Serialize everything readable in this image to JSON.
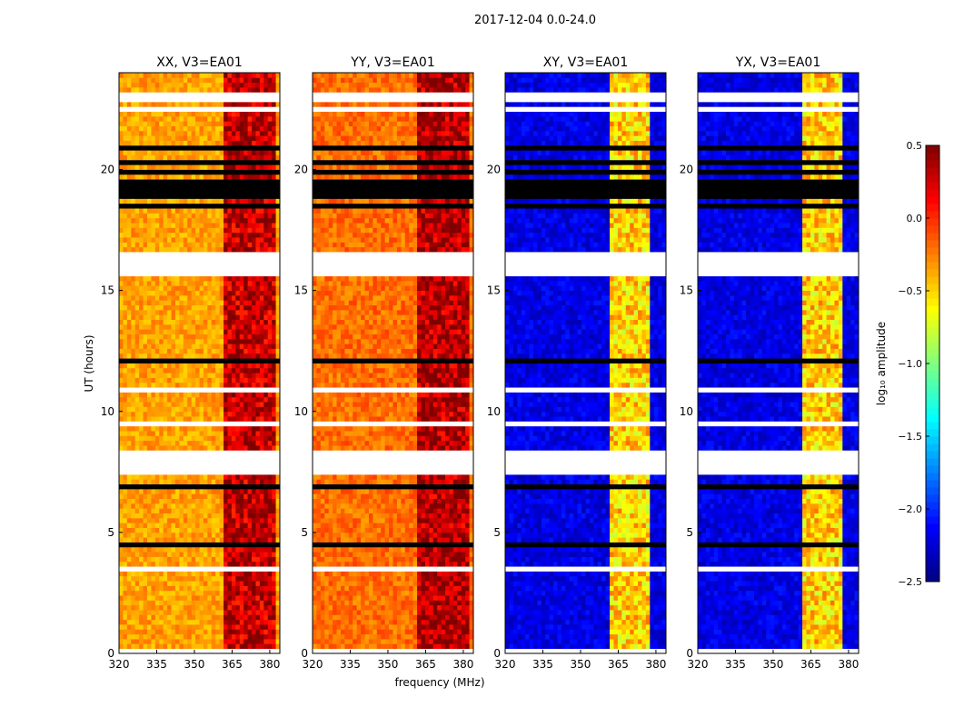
{
  "chart_data": {
    "type": "heatmap",
    "title": "2017-12-04 0.0-24.0",
    "xlabel": "frequency (MHz)",
    "ylabel": "UT (hours)",
    "xlim": [
      320,
      384
    ],
    "ylim": [
      0,
      24
    ],
    "xticks": [
      "320",
      "335",
      "350",
      "365",
      "380"
    ],
    "yticks": [
      "0",
      "5",
      "10",
      "15",
      "20"
    ],
    "panels": [
      {
        "title": "XX, V3=EA01",
        "base": -0.35,
        "band": 0.3,
        "band_range": [
          362,
          382
        ]
      },
      {
        "title": "YY, V3=EA01",
        "base": -0.2,
        "band": 0.35,
        "band_range": [
          362,
          382
        ]
      },
      {
        "title": "XY, V3=EA01",
        "base": -2.2,
        "band": -0.5,
        "band_range": [
          362,
          378
        ]
      },
      {
        "title": "YX, V3=EA01",
        "base": -2.2,
        "band": -0.5,
        "band_range": [
          362,
          378
        ]
      }
    ],
    "flagged_hours": [
      [
        7.5,
        8.4
      ],
      [
        15.7,
        16.5
      ]
    ],
    "colorbar": {
      "label": "log₁₀ amplitude",
      "range": [
        -2.5,
        0.5
      ],
      "ticks": [
        "0.5",
        "0.0",
        "−0.5",
        "−1.0",
        "−1.5",
        "−2.0",
        "−2.5"
      ],
      "colormap": "jet"
    }
  }
}
